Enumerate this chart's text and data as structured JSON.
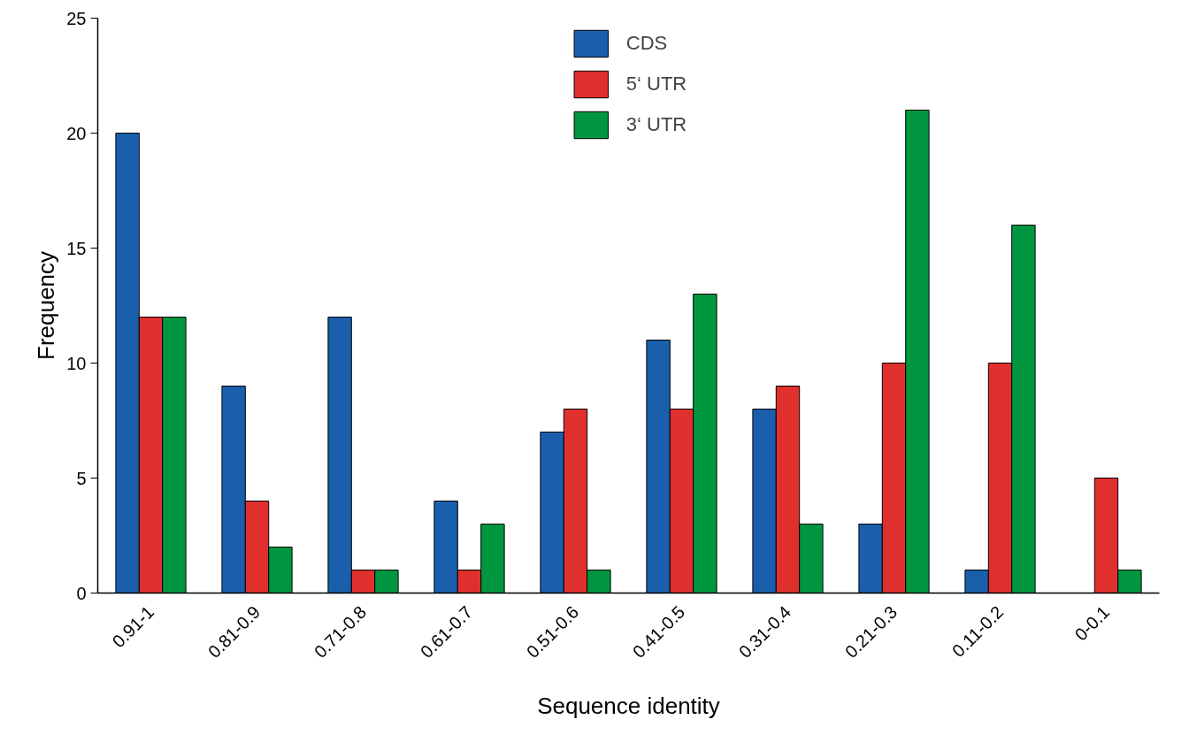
{
  "chart_data": {
    "type": "bar",
    "xlabel": "Sequence identity",
    "ylabel": "Frequency",
    "categories": [
      "0.91-1",
      "0.81-0.9",
      "0.71-0.8",
      "0.61-0.7",
      "0.51-0.6",
      "0.41-0.5",
      "0.31-0.4",
      "0.21-0.3",
      "0.11-0.2",
      "0-0.1"
    ],
    "series": [
      {
        "name": "CDS",
        "color": "#1a5fac",
        "values": [
          20,
          9,
          12,
          4,
          7,
          11,
          8,
          3,
          1,
          0
        ]
      },
      {
        "name": "5‘ UTR",
        "color": "#e0302e",
        "values": [
          12,
          4,
          1,
          1,
          8,
          8,
          9,
          10,
          10,
          5
        ]
      },
      {
        "name": "3‘ UTR",
        "color": "#00963f",
        "values": [
          12,
          2,
          1,
          3,
          1,
          13,
          3,
          21,
          16,
          1
        ]
      }
    ],
    "ylim": [
      0,
      25
    ],
    "yticks": [
      0,
      5,
      10,
      15,
      20,
      25
    ],
    "grid": false,
    "legend": "top"
  }
}
